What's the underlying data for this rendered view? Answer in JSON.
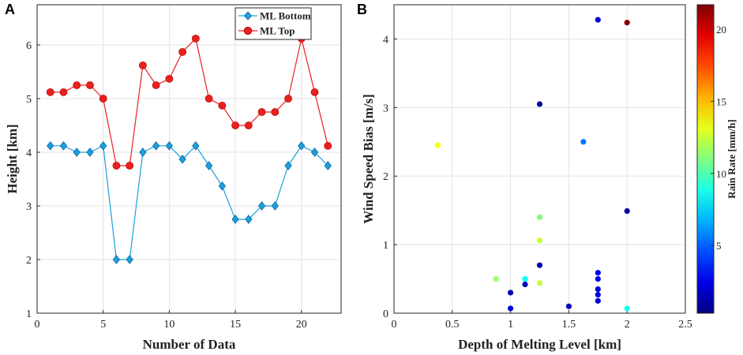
{
  "chart_data": [
    {
      "panel": "A",
      "type": "line",
      "xlabel": "Number of Data",
      "ylabel": "Height [km]",
      "xlim": [
        0,
        23
      ],
      "ylim": [
        1.0,
        6.75
      ],
      "xticks": [
        0,
        5,
        10,
        15,
        20
      ],
      "yticks": [
        1,
        2,
        3,
        4,
        5,
        6
      ],
      "grid": true,
      "legend_position": "top-right",
      "series": [
        {
          "name": "ML Bottom",
          "color": "#1aa0dc",
          "marker": "diamond",
          "x": [
            1,
            2,
            3,
            4,
            5,
            6,
            7,
            8,
            9,
            10,
            11,
            12,
            13,
            14,
            15,
            16,
            17,
            18,
            19,
            20,
            21,
            22
          ],
          "values": [
            4.12,
            4.12,
            4.0,
            4.0,
            4.12,
            2.0,
            2.0,
            4.0,
            4.12,
            4.12,
            3.87,
            4.12,
            3.75,
            3.37,
            2.75,
            2.75,
            3.0,
            3.0,
            3.75,
            4.12,
            4.0,
            3.75
          ]
        },
        {
          "name": "ML Top",
          "color": "#e8211f",
          "marker": "circle",
          "x": [
            1,
            2,
            3,
            4,
            5,
            6,
            7,
            8,
            9,
            10,
            11,
            12,
            13,
            14,
            15,
            16,
            17,
            18,
            19,
            20,
            21,
            22
          ],
          "values": [
            5.12,
            5.12,
            5.25,
            5.25,
            5.0,
            3.75,
            3.75,
            5.62,
            5.25,
            5.37,
            5.87,
            6.12,
            5.0,
            4.87,
            4.5,
            4.5,
            4.75,
            4.75,
            5.0,
            6.12,
            5.12,
            4.12
          ]
        }
      ]
    },
    {
      "panel": "B",
      "type": "scatter",
      "xlabel": "Depth of Melting Level [km]",
      "ylabel": "Wind Speed Bias [m/s]",
      "xlim": [
        0,
        2.5
      ],
      "ylim": [
        0,
        4.5
      ],
      "xticks": [
        0,
        0.5,
        1,
        1.5,
        2,
        2.5
      ],
      "xtick_labels": [
        "0",
        "0.5",
        "1",
        "1.5",
        "2",
        "2.5"
      ],
      "yticks": [
        0,
        1,
        2,
        3,
        4
      ],
      "grid": true,
      "colorbar": {
        "label": "Rain Rate [mm/h]",
        "range": [
          0.3,
          21.7
        ],
        "ticks": [
          5,
          10,
          15,
          20
        ],
        "colormap": "jet"
      },
      "points": [
        {
          "x": 0.375,
          "y": 2.45,
          "c": 13.5
        },
        {
          "x": 0.875,
          "y": 0.5,
          "c": 11.5
        },
        {
          "x": 1.0,
          "y": 0.3,
          "c": 1.5
        },
        {
          "x": 1.0,
          "y": 0.07,
          "c": 2.5
        },
        {
          "x": 1.125,
          "y": 0.5,
          "c": 8.5
        },
        {
          "x": 1.125,
          "y": 0.42,
          "c": 1.5
        },
        {
          "x": 1.25,
          "y": 3.05,
          "c": 1.0
        },
        {
          "x": 1.25,
          "y": 1.4,
          "c": 11.0
        },
        {
          "x": 1.25,
          "y": 1.06,
          "c": 12.5
        },
        {
          "x": 1.25,
          "y": 0.7,
          "c": 1.5
        },
        {
          "x": 1.25,
          "y": 0.44,
          "c": 12.5
        },
        {
          "x": 1.5,
          "y": 0.1,
          "c": 1.5
        },
        {
          "x": 1.625,
          "y": 2.5,
          "c": 5.5
        },
        {
          "x": 1.75,
          "y": 4.28,
          "c": 2.0
        },
        {
          "x": 1.75,
          "y": 0.59,
          "c": 3.0
        },
        {
          "x": 1.75,
          "y": 0.5,
          "c": 2.5
        },
        {
          "x": 1.75,
          "y": 0.35,
          "c": 2.0
        },
        {
          "x": 1.75,
          "y": 0.27,
          "c": 2.5
        },
        {
          "x": 1.75,
          "y": 0.18,
          "c": 2.0
        },
        {
          "x": 2.0,
          "y": 4.24,
          "c": 21.5
        },
        {
          "x": 2.0,
          "y": 1.49,
          "c": 1.0
        },
        {
          "x": 2.0,
          "y": 0.07,
          "c": 8.5
        }
      ]
    }
  ]
}
